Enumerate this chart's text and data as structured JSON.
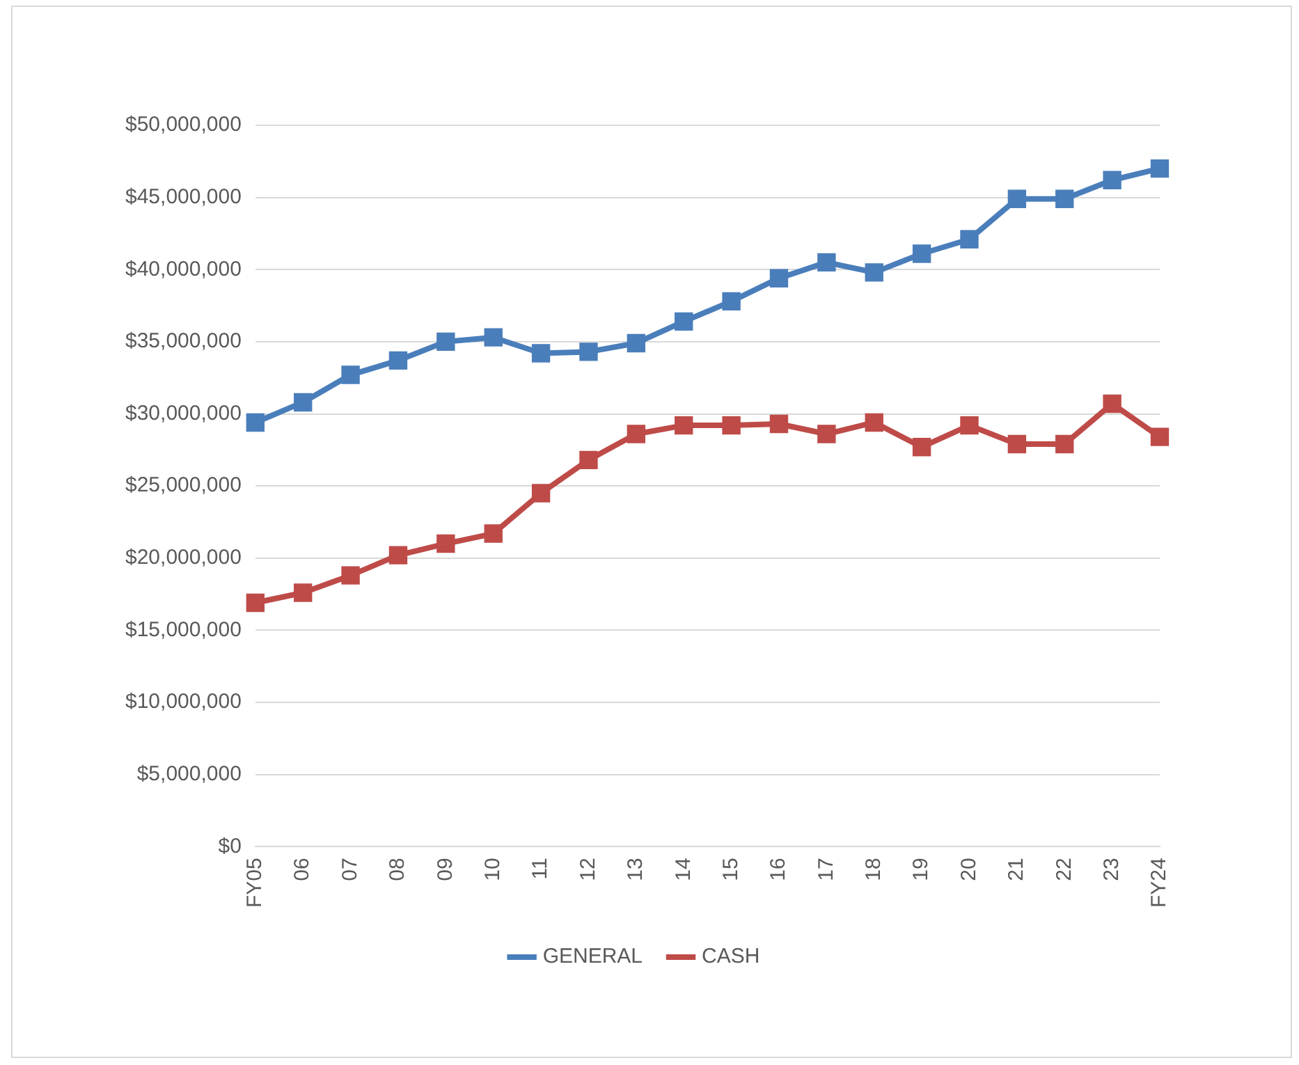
{
  "chart_data": {
    "type": "line",
    "categories": [
      "FY05",
      "06",
      "07",
      "08",
      "09",
      "10",
      "11",
      "12",
      "13",
      "14",
      "15",
      "16",
      "17",
      "18",
      "19",
      "20",
      "21",
      "22",
      "23",
      "FY24"
    ],
    "series": [
      {
        "name": "GENERAL",
        "color": "#4a7ebb",
        "values": [
          29400000,
          30800000,
          32700000,
          33700000,
          35000000,
          35300000,
          34200000,
          34300000,
          34900000,
          36400000,
          37800000,
          39400000,
          40500000,
          39800000,
          41100000,
          42100000,
          44900000,
          44900000,
          46200000,
          47000000
        ]
      },
      {
        "name": "CASH",
        "color": "#be4b48",
        "values": [
          16900000,
          17600000,
          18800000,
          20200000,
          21000000,
          21700000,
          24500000,
          26800000,
          28600000,
          29200000,
          29200000,
          29300000,
          28600000,
          29400000,
          27700000,
          29200000,
          27900000,
          27900000,
          30700000,
          28400000
        ]
      }
    ],
    "ylim": [
      0,
      50000000
    ],
    "yticks": [
      {
        "value": 0,
        "label": "$0"
      },
      {
        "value": 5000000,
        "label": "$5,000,000"
      },
      {
        "value": 10000000,
        "label": "$10,000,000"
      },
      {
        "value": 15000000,
        "label": "$15,000,000"
      },
      {
        "value": 20000000,
        "label": "$20,000,000"
      },
      {
        "value": 25000000,
        "label": "$25,000,000"
      },
      {
        "value": 30000000,
        "label": "$30,000,000"
      },
      {
        "value": 35000000,
        "label": "$35,000,000"
      },
      {
        "value": 40000000,
        "label": "$40,000,000"
      },
      {
        "value": 45000000,
        "label": "$45,000,000"
      },
      {
        "value": 50000000,
        "label": "$50,000,000"
      }
    ],
    "grid": "y",
    "legend": "bottom",
    "marker": "square",
    "line_style": "solid"
  }
}
